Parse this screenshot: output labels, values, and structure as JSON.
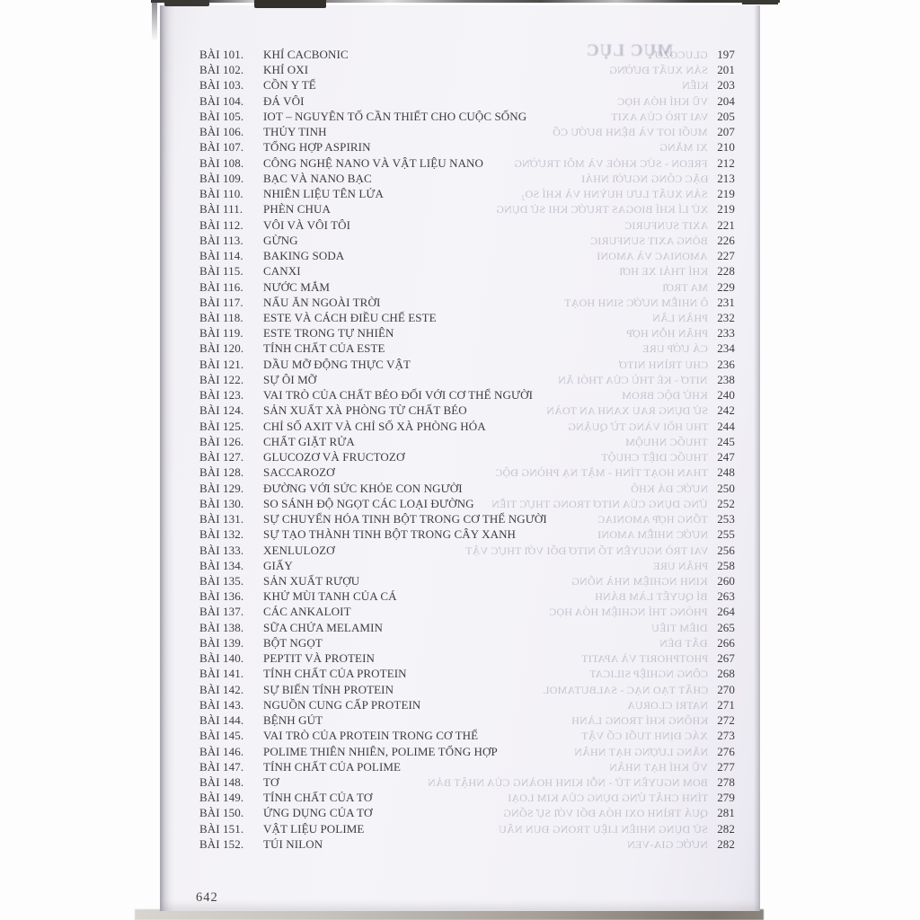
{
  "colors": {
    "ink": "#3e3c40",
    "paper_tint": "#f3f2f6",
    "background": "#fdfdfe",
    "bleedthrough": "#7a778f"
  },
  "toc": {
    "footer_page_number": "642",
    "bleedthrough_title": "MỤC LỤC",
    "entries": [
      {
        "label": "BÀI 101.",
        "title": "KHÍ CACBONIC",
        "page": "197",
        "ghost": "GLUCOZƠ"
      },
      {
        "label": "BÀI 102.",
        "title": "KHÍ OXI",
        "page": "201",
        "ghost": "SẢN XUẤT ĐƯỜNG"
      },
      {
        "label": "BÀI 103.",
        "title": "CỒN Y TẾ",
        "page": "203",
        "ghost": "KIẾN"
      },
      {
        "label": "BÀI 104.",
        "title": "ĐÁ VÔI",
        "page": "204",
        "ghost": "VŨ KHÍ HÓA HỌC"
      },
      {
        "label": "BÀI 105.",
        "title": "IOT – NGUYÊN TỐ CẦN THIẾT CHO CUỘC SỐNG",
        "page": "205",
        "ghost": "VAI TRÒ CỦA AXIT"
      },
      {
        "label": "BÀI 106.",
        "title": "THỦY TINH",
        "page": "207",
        "ghost": "MUỐI IOT VÀ BỆNH BƯỚU CỔ"
      },
      {
        "label": "BÀI 107.",
        "title": "TỔNG HỢP ASPIRIN",
        "page": "210",
        "ghost": "XI MĂNG"
      },
      {
        "label": "BÀI 108.",
        "title": "CÔNG NGHỆ NANO VÀ VẬT LIỆU NANO",
        "page": "212",
        "ghost": "FREON - SỨC KHỎE VÀ MÔI TRƯỜNG"
      },
      {
        "label": "BÀI 109.",
        "title": "BẠC VÀ NANO BẠC",
        "page": "213",
        "ghost": "ĐẶC CÔNG NGƯỜI NHÁI"
      },
      {
        "label": "BÀI 110.",
        "title": "NHIÊN LIỆU TÊN LỬA",
        "page": "219",
        "ghost": "SẢN XUẤT LƯU HUỲNH VÀ KHÍ SO₂"
      },
      {
        "label": "BÀI 111.",
        "title": "PHÈN CHUA",
        "page": "219",
        "ghost": "XỬ LÍ KHÍ BIOGAS TRƯỚC KHI SỬ DỤNG"
      },
      {
        "label": "BÀI 112.",
        "title": "VÔI VÀ VÔI TÔI",
        "page": "221",
        "ghost": "AXIT SUNFURIC"
      },
      {
        "label": "BÀI 113.",
        "title": "GỪNG",
        "page": "226",
        "ghost": "BỎNG AXIT SUNFURIC"
      },
      {
        "label": "BÀI 114.",
        "title": "BAKING SODA",
        "page": "227",
        "ghost": "AMONIAC VÀ AMONI"
      },
      {
        "label": "BÀI 115.",
        "title": "CANXI",
        "page": "228",
        "ghost": "KHÍ THẢI XE HƠI"
      },
      {
        "label": "BÀI 116.",
        "title": "NƯỚC MẮM",
        "page": "229",
        "ghost": "MA TRƠI"
      },
      {
        "label": "BÀI 117.",
        "title": "NẤU ĂN NGOÀI TRỜI",
        "page": "231",
        "ghost": "Ô NHIỄM NƯỚC SINH HOẠT"
      },
      {
        "label": "BÀI 118.",
        "title": "ESTE VÀ CÁCH ĐIỀU CHẾ ESTE",
        "page": "232",
        "ghost": "PHÂN LÂN"
      },
      {
        "label": "BÀI 119.",
        "title": "ESTE TRONG TỰ NHIÊN",
        "page": "233",
        "ghost": "PHÂN HỖN HỢP"
      },
      {
        "label": "BÀI 120.",
        "title": "TÍNH CHẤT CỦA ESTE",
        "page": "234",
        "ghost": "CÁ ƯỚP URE"
      },
      {
        "label": "BÀI 121.",
        "title": "DẦU MỠ ĐỘNG THỰC VẬT",
        "page": "236",
        "ghost": "CHU TRÌNH NITƠ"
      },
      {
        "label": "BÀI 122.",
        "title": "SỰ ÔI MỠ",
        "page": "238",
        "ghost": "NITƠ - KẺ THÙ CỦA THÓI ĂN"
      },
      {
        "label": "BÀI 123.",
        "title": "VAI TRÒ CỦA CHẤT BÉO ĐỐI VỚI CƠ THỂ NGƯỜI",
        "page": "240",
        "ghost": "KHỬ ĐỘC BROM"
      },
      {
        "label": "BÀI 124.",
        "title": "SẢN XUẤT XÀ PHÒNG TỪ CHẤT BÉO",
        "page": "242",
        "ghost": "SỬ DỤNG RAU XANH AN TOÀN"
      },
      {
        "label": "BÀI 125.",
        "title": "CHỈ SỐ AXIT VÀ CHỈ SỐ XÀ PHÒNG HÓA",
        "page": "244",
        "ghost": "THU HỒI VÀNG TỪ QUẶNG"
      },
      {
        "label": "BÀI 126.",
        "title": "CHẤT GIẶT RỬA",
        "page": "245",
        "ghost": "THUỐC NHUỘM"
      },
      {
        "label": "BÀI 127.",
        "title": "GLUCOZƠ VÀ FRUCTOZƠ",
        "page": "247",
        "ghost": "THUỐC DIỆT CHUỘT"
      },
      {
        "label": "BÀI 128.",
        "title": "SACCAROZƠ",
        "page": "248",
        "ghost": "THAN HOẠT TÍNH - MẶT NẠ PHÒNG ĐỘC"
      },
      {
        "label": "BÀI 129.",
        "title": "ĐƯỜNG VỚI SỨC KHỎE CON NGƯỜI",
        "page": "250",
        "ghost": "NƯỚC ĐÁ KHÔ"
      },
      {
        "label": "BÀI 130.",
        "title": "SO SÁNH ĐỘ NGỌT CÁC LOẠI ĐƯỜNG",
        "page": "252",
        "ghost": "ỨNG DỤNG CỦA NITƠ TRONG THỰC TIỄN"
      },
      {
        "label": "BÀI 131.",
        "title": "SỰ CHUYỂN HÓA TINH BỘT TRONG CƠ THỂ NGƯỜI",
        "page": "253",
        "ghost": "TỔNG HỢP AMONIAC"
      },
      {
        "label": "BÀI 132.",
        "title": "SỰ TẠO THÀNH TINH BỘT TRONG CÂY XANH",
        "page": "255",
        "ghost": "NƯỚC NHIỄM AMONI"
      },
      {
        "label": "BÀI 133.",
        "title": "XENLULOZƠ",
        "page": "256",
        "ghost": "VAI TRÒ NGUYÊN TỐ NITƠ ĐỐI VỚI THỰC VẬT"
      },
      {
        "label": "BÀI 134.",
        "title": "GIẤY",
        "page": "258",
        "ghost": "PHÂN URE"
      },
      {
        "label": "BÀI 135.",
        "title": "SẢN XUẤT RƯỢU",
        "page": "260",
        "ghost": "KINH NGHIỆM NHÀ NÔNG"
      },
      {
        "label": "BÀI 136.",
        "title": "KHỬ MÙI TANH CỦA CÁ",
        "page": "263",
        "ghost": "BÍ QUYẾT LÀM BÁNH"
      },
      {
        "label": "BÀI 137.",
        "title": "CÁC ANKALOIT",
        "page": "264",
        "ghost": "PHÒNG THÍ NGHIỆM HÓA HỌC"
      },
      {
        "label": "BÀI 138.",
        "title": "SỮA CHỨA MELAMIN",
        "page": "265",
        "ghost": "DIÊM TIÊU"
      },
      {
        "label": "BÀI 139.",
        "title": "BỘT NGỌT",
        "page": "266",
        "ghost": "ĐẤT ĐÈN"
      },
      {
        "label": "BÀI 140.",
        "title": "PEPTIT VÀ PROTEIN",
        "page": "267",
        "ghost": "PHOTPHORIT VÀ APATIT"
      },
      {
        "label": "BÀI 141.",
        "title": "TÍNH CHẤT CỦA PROTEIN",
        "page": "268",
        "ghost": "CÔNG NGHIỆP SILICAT"
      },
      {
        "label": "BÀI 142.",
        "title": "SỰ BIẾN TÍNH PROTEIN",
        "page": "270",
        "ghost": "CHẤT TẠO NẠC - SALBUTAMOL"
      },
      {
        "label": "BÀI 143.",
        "title": "NGUỒN CUNG CẤP PROTEIN",
        "page": "271",
        "ghost": "NATRI CLORUA"
      },
      {
        "label": "BÀI 144.",
        "title": "BỆNH GÚT",
        "page": "272",
        "ghost": "KHÔNG KHÍ TRONG LÀNH"
      },
      {
        "label": "BÀI 145.",
        "title": "VAI TRÒ CỦA PROTEIN TRONG CƠ THỂ",
        "page": "273",
        "ghost": "XÁC ĐỊNH TUỔI CỔ VẬT"
      },
      {
        "label": "BÀI 146.",
        "title": "POLIME THIÊN NHIÊN, POLIME TỔNG HỢP",
        "page": "276",
        "ghost": "NĂNG LƯỢNG HẠT NHÂN"
      },
      {
        "label": "BÀI 147.",
        "title": "TÍNH CHẤT CỦA POLIME",
        "page": "277",
        "ghost": "VŨ KHÍ HẠT NHÂN"
      },
      {
        "label": "BÀI 148.",
        "title": "TƠ",
        "page": "278",
        "ghost": "BOM NGUYÊN TỬ - NỖI KINH HOÀNG CỦA NHẬT BẢN"
      },
      {
        "label": "BÀI 149.",
        "title": "TÍNH CHẤT CỦA TƠ",
        "page": "279",
        "ghost": "TÍNH CHẤT ỨNG DỤNG CỦA KIM LOẠI"
      },
      {
        "label": "BÀI 150.",
        "title": "ỨNG DỤNG CỦA TƠ",
        "page": "281",
        "ghost": "QUÁ TRÌNH OXI HÓA ĐỐI VỚI SỰ SỐNG"
      },
      {
        "label": "BÀI 151.",
        "title": "VẬT LIỆU POLIME",
        "page": "282",
        "ghost": "SỬ DỤNG NHIÊN LIỆU TRONG ĐUN NẤU"
      },
      {
        "label": "BÀI 152.",
        "title": "TÚI NILON",
        "page": "282",
        "ghost": "NƯỚC GIA-VEN"
      }
    ]
  }
}
